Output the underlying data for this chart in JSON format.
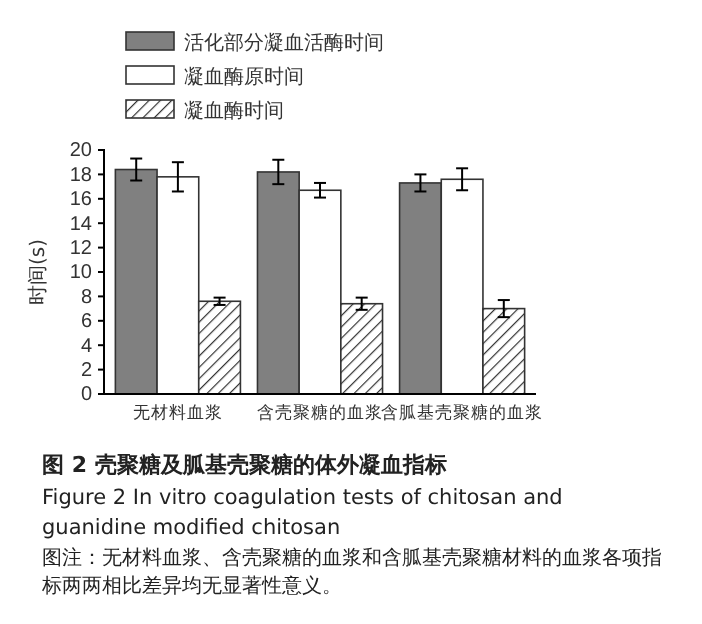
{
  "chart_data": {
    "type": "bar",
    "title": "图 2  壳聚糖及胍基壳聚糖的体外凝血指标",
    "subtitle": "Figure 2  In vitro coagulation tests of chitosan and guanidine modified chitosan",
    "ylabel": "时间(s)",
    "annotations": [
      "图注：无材料血浆、含壳聚糖的血浆和含胍基壳聚糖材料的血浆各项指标两两相比差异均无显著性意义。"
    ],
    "categories": [
      "无材料血浆",
      "含壳聚糖的血浆",
      "含胍基壳聚糖的血浆"
    ],
    "series": [
      {
        "name": "活化部分凝血活酶时间",
        "color": "#808080",
        "values": [
          18.4,
          18.2,
          17.3
        ],
        "errors": [
          0.9,
          1.0,
          0.7
        ]
      },
      {
        "name": "凝血酶原时间",
        "color": "#ffffff",
        "values": [
          17.8,
          16.7,
          17.6
        ],
        "errors": [
          1.2,
          0.6,
          0.9
        ]
      },
      {
        "name": "凝血酶时间",
        "color": "#333333",
        "values": [
          7.6,
          7.4,
          7.0
        ],
        "errors": [
          0.3,
          0.5,
          0.7
        ]
      }
    ],
    "ylim": [
      0,
      20
    ],
    "yticks": [
      0,
      2,
      4,
      6,
      8,
      10,
      12,
      14,
      16,
      18,
      20
    ],
    "legend": "top left"
  }
}
